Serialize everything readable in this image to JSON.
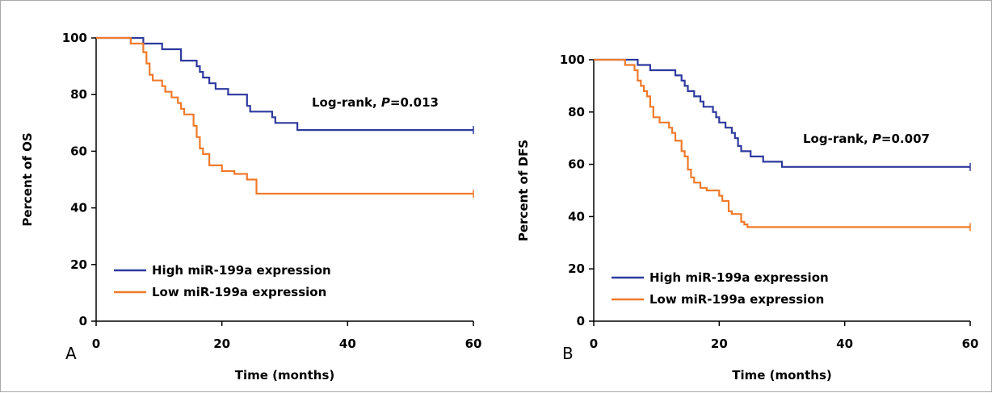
{
  "chart_data": [
    {
      "type": "line",
      "panel_label": "A",
      "xlabel": "Time (months)",
      "ylabel": "Percent of OS",
      "xlim": [
        0,
        60
      ],
      "ylim": [
        0,
        100
      ],
      "x_ticks": [
        0,
        20,
        40,
        60
      ],
      "y_ticks": [
        0,
        20,
        40,
        60,
        80,
        100
      ],
      "grid": false,
      "legend_position": "bottom-left",
      "annotation": {
        "prefix": "Log-rank, ",
        "italic": "P",
        "suffix": "=0.013"
      },
      "series": [
        {
          "name": "High miR-199a expression",
          "color": "#2e3a9e",
          "step": true,
          "points": [
            [
              0,
              100
            ],
            [
              7.5,
              100
            ],
            [
              7.5,
              98
            ],
            [
              10.5,
              98
            ],
            [
              10.5,
              96
            ],
            [
              13.5,
              96
            ],
            [
              13.5,
              92
            ],
            [
              16,
              92
            ],
            [
              16,
              90
            ],
            [
              16.5,
              90
            ],
            [
              16.5,
              88
            ],
            [
              17,
              88
            ],
            [
              17,
              86
            ],
            [
              18,
              86
            ],
            [
              18,
              84
            ],
            [
              19,
              84
            ],
            [
              19,
              82
            ],
            [
              21,
              82
            ],
            [
              21,
              80
            ],
            [
              24,
              80
            ],
            [
              24,
              76
            ],
            [
              24.5,
              76
            ],
            [
              24.5,
              74
            ],
            [
              28,
              74
            ],
            [
              28,
              72
            ],
            [
              28.5,
              72
            ],
            [
              28.5,
              70
            ],
            [
              32,
              70
            ],
            [
              32,
              67.5
            ],
            [
              60,
              67.5
            ]
          ]
        },
        {
          "name": "Low miR-199a expression",
          "color": "#f07a2a",
          "step": true,
          "points": [
            [
              0,
              100
            ],
            [
              5.5,
              100
            ],
            [
              5.5,
              98
            ],
            [
              7.5,
              98
            ],
            [
              7.5,
              95
            ],
            [
              8,
              95
            ],
            [
              8,
              91
            ],
            [
              8.5,
              91
            ],
            [
              8.5,
              87
            ],
            [
              9,
              87
            ],
            [
              9,
              85
            ],
            [
              10.5,
              85
            ],
            [
              10.5,
              83
            ],
            [
              11,
              83
            ],
            [
              11,
              81
            ],
            [
              12,
              81
            ],
            [
              12,
              79
            ],
            [
              13,
              79
            ],
            [
              13,
              77
            ],
            [
              13.5,
              77
            ],
            [
              13.5,
              75
            ],
            [
              14,
              75
            ],
            [
              14,
              73
            ],
            [
              15.5,
              73
            ],
            [
              15.5,
              69
            ],
            [
              16,
              69
            ],
            [
              16,
              65
            ],
            [
              16.5,
              65
            ],
            [
              16.5,
              61
            ],
            [
              17,
              61
            ],
            [
              17,
              59
            ],
            [
              18,
              59
            ],
            [
              18,
              55
            ],
            [
              20,
              55
            ],
            [
              20,
              53
            ],
            [
              22,
              53
            ],
            [
              22,
              52
            ],
            [
              24,
              52
            ],
            [
              24,
              50
            ],
            [
              25.5,
              50
            ],
            [
              25.5,
              45
            ],
            [
              60,
              45
            ]
          ]
        }
      ]
    },
    {
      "type": "line",
      "panel_label": "B",
      "xlabel": "Time (months)",
      "ylabel": "Percent of DFS",
      "xlim": [
        0,
        60
      ],
      "ylim": [
        0,
        100
      ],
      "x_ticks": [
        0,
        20,
        40,
        60
      ],
      "y_ticks": [
        0,
        20,
        40,
        60,
        80,
        100
      ],
      "grid": false,
      "legend_position": "bottom-left",
      "annotation": {
        "prefix": "Log-rank, ",
        "italic": "P",
        "suffix": "=0.007"
      },
      "series": [
        {
          "name": "High miR-199a expression",
          "color": "#2e3a9e",
          "step": true,
          "points": [
            [
              0,
              100
            ],
            [
              7,
              100
            ],
            [
              7,
              98
            ],
            [
              9,
              98
            ],
            [
              9,
              96
            ],
            [
              13,
              96
            ],
            [
              13,
              94
            ],
            [
              14,
              94
            ],
            [
              14,
              92
            ],
            [
              14.5,
              92
            ],
            [
              14.5,
              90
            ],
            [
              15,
              90
            ],
            [
              15,
              88
            ],
            [
              16,
              88
            ],
            [
              16,
              86
            ],
            [
              17,
              86
            ],
            [
              17,
              84
            ],
            [
              17.5,
              84
            ],
            [
              17.5,
              82
            ],
            [
              19,
              82
            ],
            [
              19,
              80
            ],
            [
              19.5,
              80
            ],
            [
              19.5,
              78
            ],
            [
              20,
              78
            ],
            [
              20,
              76
            ],
            [
              21,
              76
            ],
            [
              21,
              74
            ],
            [
              22,
              74
            ],
            [
              22,
              72
            ],
            [
              22.5,
              72
            ],
            [
              22.5,
              70
            ],
            [
              23,
              70
            ],
            [
              23,
              67
            ],
            [
              23.5,
              67
            ],
            [
              23.5,
              65
            ],
            [
              25,
              65
            ],
            [
              25,
              63
            ],
            [
              27,
              63
            ],
            [
              27,
              61
            ],
            [
              30,
              61
            ],
            [
              30,
              59
            ],
            [
              60,
              59
            ]
          ]
        },
        {
          "name": "Low miR-199a expression",
          "color": "#f07a2a",
          "step": true,
          "points": [
            [
              0,
              100
            ],
            [
              5,
              100
            ],
            [
              5,
              98
            ],
            [
              6.5,
              98
            ],
            [
              6.5,
              96
            ],
            [
              7,
              96
            ],
            [
              7,
              92
            ],
            [
              7.5,
              92
            ],
            [
              7.5,
              90
            ],
            [
              8,
              90
            ],
            [
              8,
              88
            ],
            [
              8.5,
              88
            ],
            [
              8.5,
              86
            ],
            [
              9,
              86
            ],
            [
              9,
              82
            ],
            [
              9.5,
              82
            ],
            [
              9.5,
              78
            ],
            [
              10.5,
              78
            ],
            [
              10.5,
              76
            ],
            [
              12,
              76
            ],
            [
              12,
              74
            ],
            [
              12.5,
              74
            ],
            [
              12.5,
              72
            ],
            [
              13,
              72
            ],
            [
              13,
              69
            ],
            [
              14,
              69
            ],
            [
              14,
              65
            ],
            [
              14.5,
              65
            ],
            [
              14.5,
              63
            ],
            [
              15,
              63
            ],
            [
              15,
              58
            ],
            [
              15.5,
              58
            ],
            [
              15.5,
              55
            ],
            [
              16,
              55
            ],
            [
              16,
              53
            ],
            [
              17,
              53
            ],
            [
              17,
              51
            ],
            [
              18,
              51
            ],
            [
              18,
              50
            ],
            [
              20,
              50
            ],
            [
              20,
              48
            ],
            [
              20.5,
              48
            ],
            [
              20.5,
              46
            ],
            [
              21.5,
              46
            ],
            [
              21.5,
              42
            ],
            [
              22,
              42
            ],
            [
              22,
              41
            ],
            [
              23.5,
              41
            ],
            [
              23.5,
              38
            ],
            [
              24,
              38
            ],
            [
              24,
              37
            ],
            [
              24.5,
              37
            ],
            [
              24.5,
              36
            ],
            [
              60,
              36
            ]
          ]
        }
      ]
    }
  ]
}
